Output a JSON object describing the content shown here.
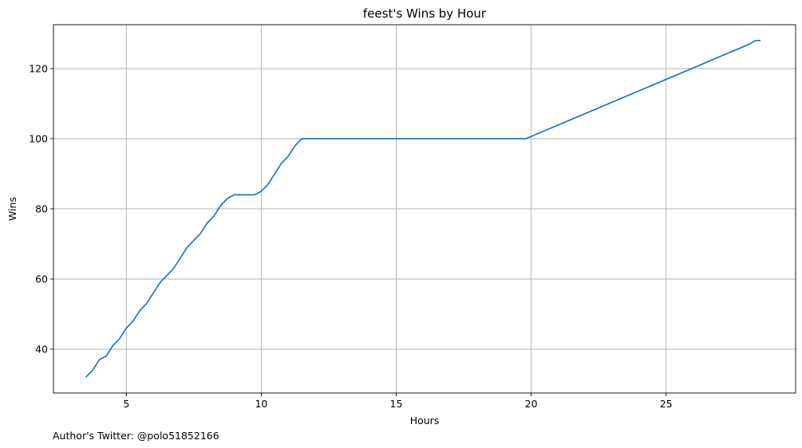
{
  "chart_data": {
    "type": "line",
    "title": "feest's Wins by Hour",
    "xlabel": "Hours",
    "ylabel": "Wins",
    "xlim": [
      2.3,
      29.8
    ],
    "ylim": [
      27.5,
      132.5
    ],
    "xticks": [
      5,
      10,
      15,
      20,
      25
    ],
    "yticks": [
      40,
      60,
      80,
      100,
      120
    ],
    "xtick_labels": [
      "5",
      "10",
      "15",
      "20",
      "25"
    ],
    "ytick_labels": [
      "40",
      "60",
      "80",
      "100",
      "120"
    ],
    "grid": true,
    "color": "#1f77b4",
    "series": [
      {
        "x": [
          3.5,
          3.75,
          4.0,
          4.25,
          4.5,
          4.75,
          5.0,
          5.25,
          5.5,
          5.75,
          6.0,
          6.25,
          6.5,
          6.75,
          7.0,
          7.25,
          7.5,
          7.75,
          8.0,
          8.25,
          8.5,
          8.75,
          9.0,
          9.25,
          9.5,
          9.75,
          10.0,
          10.25,
          10.5,
          10.75,
          11.0,
          11.25,
          11.5,
          19.8,
          28.1,
          28.3,
          28.5
        ],
        "y": [
          32,
          34,
          37,
          38,
          41,
          43,
          46,
          48,
          51,
          53,
          56,
          59,
          61,
          63,
          66,
          69,
          71,
          73,
          76,
          78,
          81,
          83,
          84,
          84,
          84,
          84,
          85,
          87,
          90,
          93,
          95,
          98,
          100,
          100,
          127,
          128,
          128
        ]
      }
    ]
  },
  "footer": {
    "author": "Author's Twitter: @polo51852166"
  }
}
